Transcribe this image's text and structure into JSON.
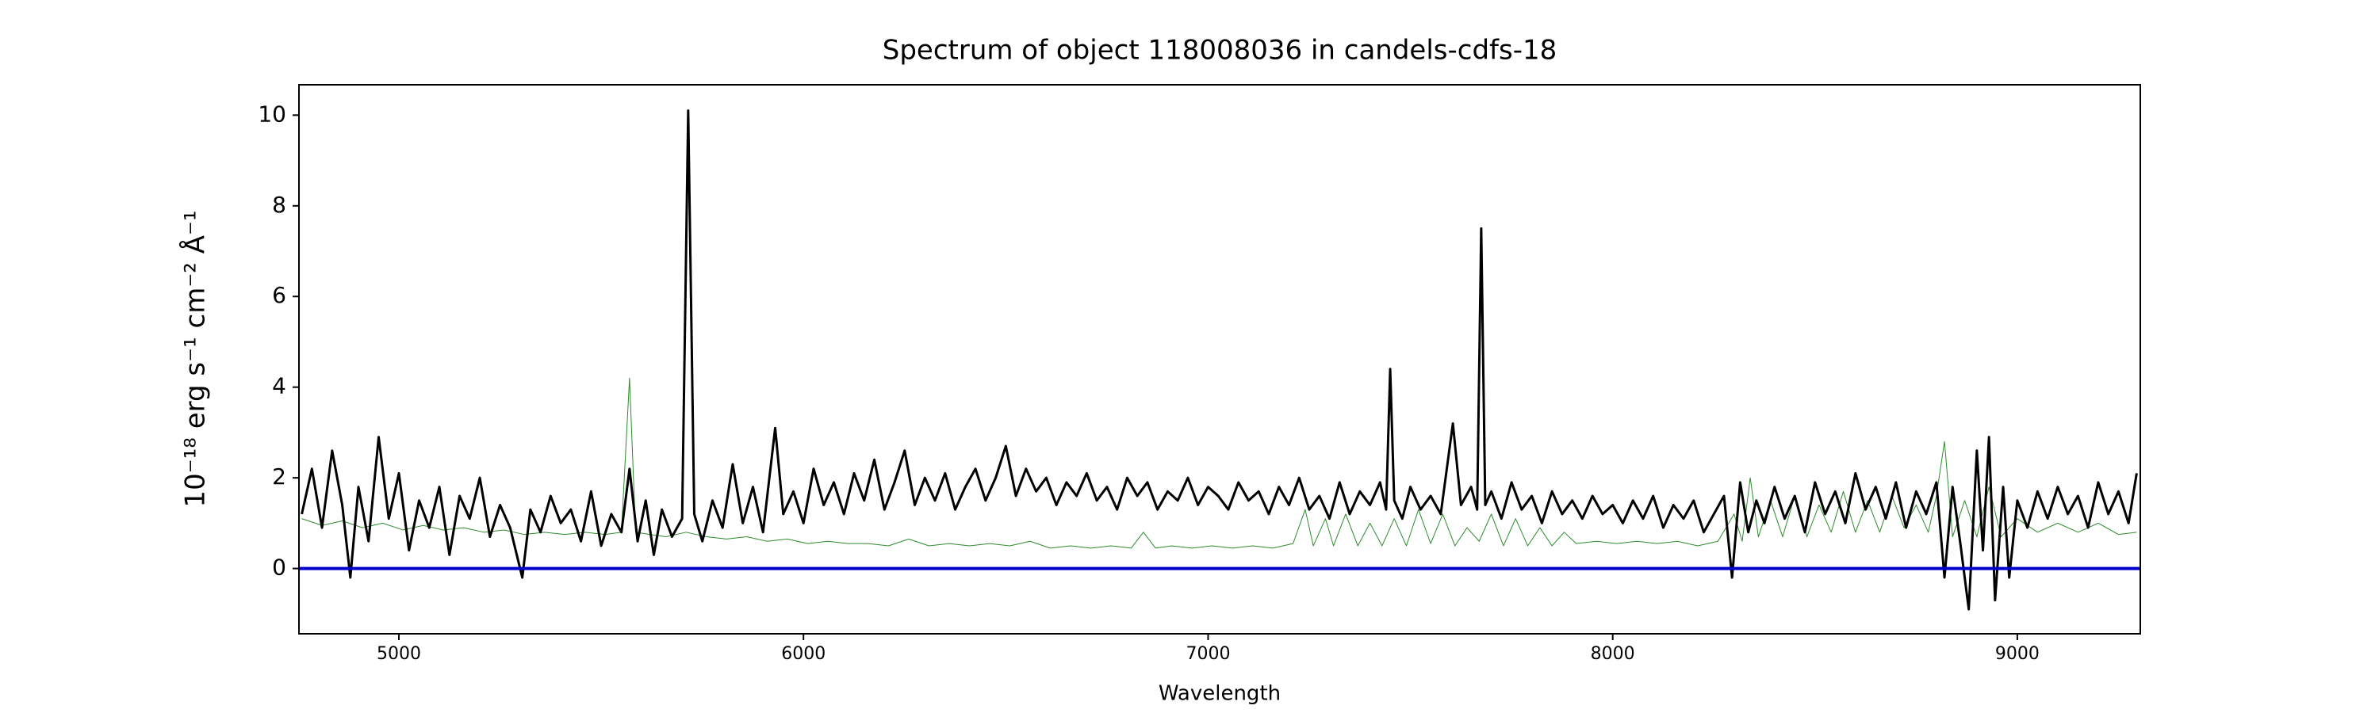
{
  "chart_data": {
    "type": "line",
    "title": "Spectrum of object 118008036 in candels-cdfs-18",
    "x_label": "Wavelength",
    "y_label": "10⁻¹⁸ erg s⁻¹ cm⁻² Å⁻¹",
    "xlim": [
      4753,
      9304
    ],
    "ylim": [
      -1.44,
      10.67
    ],
    "xticks": [
      5000,
      6000,
      7000,
      8000,
      9000
    ],
    "yticks": [
      0,
      2,
      4,
      6,
      8,
      10
    ],
    "grid": false,
    "series": [
      {
        "color": "#2e8b2e",
        "width": 1,
        "x": [
          4760,
          4810,
          4860,
          4910,
          4960,
          5010,
          5060,
          5110,
          5160,
          5210,
          5260,
          5310,
          5360,
          5410,
          5460,
          5510,
          5550,
          5570,
          5585,
          5620,
          5660,
          5710,
          5760,
          5810,
          5860,
          5910,
          5960,
          6010,
          6060,
          6110,
          6160,
          6210,
          6260,
          6310,
          6360,
          6410,
          6460,
          6510,
          6560,
          6610,
          6660,
          6710,
          6760,
          6810,
          6840,
          6870,
          6910,
          6960,
          7010,
          7060,
          7110,
          7160,
          7210,
          7240,
          7260,
          7290,
          7310,
          7340,
          7370,
          7400,
          7430,
          7460,
          7490,
          7520,
          7550,
          7580,
          7610,
          7640,
          7670,
          7700,
          7730,
          7760,
          7790,
          7820,
          7850,
          7880,
          7910,
          7960,
          8010,
          8060,
          8110,
          8160,
          8210,
          8260,
          8300,
          8320,
          8340,
          8360,
          8390,
          8420,
          8450,
          8480,
          8510,
          8540,
          8570,
          8600,
          8630,
          8660,
          8690,
          8720,
          8750,
          8780,
          8800,
          8820,
          8840,
          8870,
          8900,
          8930,
          8960,
          9000,
          9050,
          9100,
          9150,
          9200,
          9250,
          9295
        ],
        "values": [
          1.1,
          0.95,
          1.05,
          0.9,
          1.0,
          0.85,
          0.95,
          0.85,
          0.9,
          0.8,
          0.85,
          0.75,
          0.8,
          0.75,
          0.8,
          0.75,
          0.8,
          4.2,
          0.8,
          0.75,
          0.7,
          0.8,
          0.7,
          0.65,
          0.7,
          0.6,
          0.65,
          0.55,
          0.6,
          0.55,
          0.55,
          0.5,
          0.65,
          0.5,
          0.55,
          0.5,
          0.55,
          0.5,
          0.6,
          0.45,
          0.5,
          0.45,
          0.5,
          0.45,
          0.8,
          0.45,
          0.5,
          0.45,
          0.5,
          0.45,
          0.5,
          0.45,
          0.55,
          1.3,
          0.5,
          1.1,
          0.5,
          1.2,
          0.5,
          1.0,
          0.5,
          1.1,
          0.5,
          1.3,
          0.55,
          1.2,
          0.5,
          0.9,
          0.6,
          1.2,
          0.5,
          1.1,
          0.5,
          0.9,
          0.5,
          0.8,
          0.55,
          0.6,
          0.55,
          0.6,
          0.55,
          0.6,
          0.5,
          0.6,
          1.2,
          0.6,
          2.0,
          0.7,
          1.5,
          0.7,
          1.6,
          0.7,
          1.4,
          0.8,
          1.7,
          0.8,
          1.5,
          0.8,
          1.6,
          0.9,
          1.4,
          0.8,
          1.6,
          2.8,
          0.7,
          1.5,
          0.7,
          1.8,
          0.7,
          1.1,
          0.8,
          1.0,
          0.8,
          1.0,
          0.75,
          0.8
        ]
      },
      {
        "color": "#000000",
        "width": 3,
        "x": [
          4760,
          4785,
          4810,
          4835,
          4860,
          4880,
          4900,
          4925,
          4950,
          4975,
          5000,
          5025,
          5050,
          5075,
          5100,
          5125,
          5150,
          5175,
          5200,
          5225,
          5250,
          5275,
          5305,
          5325,
          5350,
          5375,
          5400,
          5425,
          5450,
          5475,
          5500,
          5525,
          5550,
          5570,
          5590,
          5610,
          5630,
          5650,
          5675,
          5700,
          5715,
          5730,
          5750,
          5775,
          5800,
          5825,
          5850,
          5875,
          5900,
          5930,
          5950,
          5975,
          6000,
          6025,
          6050,
          6075,
          6100,
          6125,
          6150,
          6175,
          6200,
          6225,
          6250,
          6275,
          6300,
          6325,
          6350,
          6375,
          6400,
          6425,
          6450,
          6475,
          6500,
          6525,
          6550,
          6575,
          6600,
          6625,
          6650,
          6675,
          6700,
          6725,
          6750,
          6775,
          6800,
          6825,
          6850,
          6875,
          6900,
          6925,
          6950,
          6975,
          7000,
          7025,
          7050,
          7075,
          7100,
          7125,
          7150,
          7175,
          7200,
          7225,
          7250,
          7275,
          7300,
          7325,
          7350,
          7375,
          7400,
          7425,
          7440,
          7450,
          7460,
          7480,
          7500,
          7525,
          7550,
          7575,
          7605,
          7625,
          7650,
          7665,
          7675,
          7685,
          7700,
          7725,
          7750,
          7775,
          7800,
          7825,
          7850,
          7875,
          7900,
          7925,
          7950,
          7975,
          8000,
          8025,
          8050,
          8075,
          8100,
          8125,
          8150,
          8175,
          8200,
          8225,
          8250,
          8275,
          8295,
          8315,
          8335,
          8355,
          8375,
          8400,
          8425,
          8450,
          8475,
          8500,
          8525,
          8550,
          8575,
          8600,
          8625,
          8650,
          8675,
          8700,
          8725,
          8750,
          8775,
          8800,
          8820,
          8840,
          8860,
          8880,
          8900,
          8915,
          8930,
          8945,
          8965,
          8980,
          9000,
          9025,
          9050,
          9075,
          9100,
          9125,
          9150,
          9175,
          9200,
          9225,
          9250,
          9275,
          9295
        ],
        "values": [
          1.2,
          2.2,
          0.9,
          2.6,
          1.4,
          -0.2,
          1.8,
          0.6,
          2.9,
          1.1,
          2.1,
          0.4,
          1.5,
          0.9,
          1.8,
          0.3,
          1.6,
          1.1,
          2.0,
          0.7,
          1.4,
          0.9,
          -0.2,
          1.3,
          0.8,
          1.6,
          1.0,
          1.3,
          0.6,
          1.7,
          0.5,
          1.2,
          0.8,
          2.2,
          0.6,
          1.5,
          0.3,
          1.3,
          0.7,
          1.1,
          10.1,
          1.2,
          0.6,
          1.5,
          0.9,
          2.3,
          1.0,
          1.8,
          0.8,
          3.1,
          1.2,
          1.7,
          1.0,
          2.2,
          1.4,
          1.9,
          1.2,
          2.1,
          1.5,
          2.4,
          1.3,
          1.9,
          2.6,
          1.4,
          2.0,
          1.5,
          2.1,
          1.3,
          1.8,
          2.2,
          1.5,
          2.0,
          2.7,
          1.6,
          2.2,
          1.7,
          2.0,
          1.4,
          1.9,
          1.6,
          2.1,
          1.5,
          1.8,
          1.3,
          2.0,
          1.6,
          1.9,
          1.3,
          1.7,
          1.5,
          2.0,
          1.4,
          1.8,
          1.6,
          1.3,
          1.9,
          1.5,
          1.7,
          1.2,
          1.8,
          1.4,
          2.0,
          1.3,
          1.6,
          1.1,
          1.9,
          1.2,
          1.7,
          1.4,
          1.9,
          1.3,
          4.4,
          1.5,
          1.1,
          1.8,
          1.3,
          1.6,
          1.2,
          3.2,
          1.4,
          1.8,
          1.3,
          7.5,
          1.4,
          1.7,
          1.1,
          1.9,
          1.3,
          1.6,
          1.0,
          1.7,
          1.2,
          1.5,
          1.1,
          1.6,
          1.2,
          1.4,
          1.0,
          1.5,
          1.1,
          1.6,
          0.9,
          1.4,
          1.1,
          1.5,
          0.8,
          1.2,
          1.6,
          -0.2,
          1.9,
          0.8,
          1.5,
          1.0,
          1.8,
          1.1,
          1.6,
          0.8,
          1.9,
          1.2,
          1.7,
          1.0,
          2.1,
          1.3,
          1.8,
          1.1,
          1.9,
          0.9,
          1.7,
          1.2,
          1.9,
          -0.2,
          1.8,
          0.5,
          -0.9,
          2.6,
          0.4,
          2.9,
          -0.7,
          1.8,
          -0.2,
          1.5,
          0.9,
          1.7,
          1.1,
          1.8,
          1.2,
          1.6,
          0.9,
          1.9,
          1.2,
          1.7,
          1.0,
          2.1
        ]
      },
      {
        "color": "#0000cc",
        "width": 4,
        "x": [
          4753,
          9304
        ],
        "values": [
          0,
          0
        ]
      }
    ]
  }
}
